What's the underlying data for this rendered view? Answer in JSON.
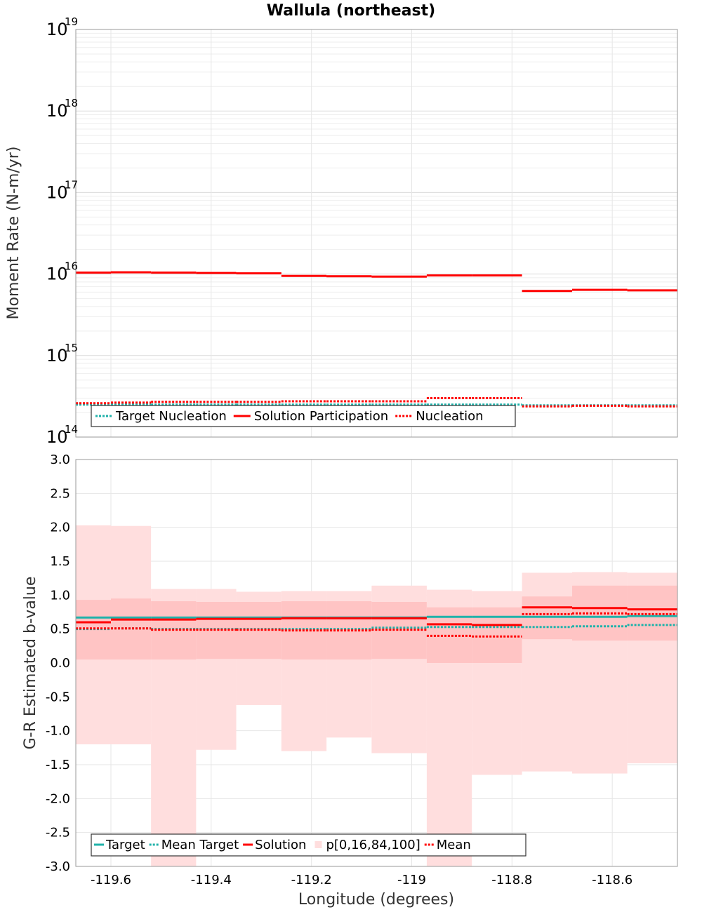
{
  "chart_data": [
    {
      "type": "line",
      "title": "Wallula (northeast)",
      "xlabel": "Longitude (degrees)",
      "ylabel": "Moment Rate (N-m/yr)",
      "yscale": "log",
      "xlim": [
        -119.67,
        -118.47
      ],
      "ylim": [
        100000000000000.0,
        1e+19
      ],
      "ytick_exponents": [
        "14",
        "15",
        "16",
        "17",
        "18",
        "19"
      ],
      "grid": true,
      "legend_position": "bottom-left",
      "bin_edges": [
        -119.67,
        -119.6,
        -119.52,
        -119.43,
        -119.35,
        -119.26,
        -119.17,
        -119.08,
        -118.97,
        -118.88,
        -118.78,
        -118.68,
        -118.57,
        -118.47
      ],
      "series": [
        {
          "name": "Target Nucleation",
          "style": "dotted",
          "color": "#20b2aa",
          "values": [
            250000000000000.0,
            250000000000000.0,
            250000000000000.0,
            250000000000000.0,
            250000000000000.0,
            250000000000000.0,
            250000000000000.0,
            250000000000000.0,
            250000000000000.0,
            250000000000000.0,
            245000000000000.0,
            245000000000000.0,
            245000000000000.0
          ]
        },
        {
          "name": "Solution Participation",
          "style": "solid",
          "color": "#ff0000",
          "values": [
            1.04e+16,
            1.05e+16,
            1.04e+16,
            1.03e+16,
            1.02e+16,
            9500000000000000.0,
            9400000000000000.0,
            9300000000000000.0,
            9600000000000000.0,
            9600000000000000.0,
            6200000000000000.0,
            6400000000000000.0,
            6300000000000000.0
          ]
        },
        {
          "name": "Nucleation",
          "style": "dotted",
          "color": "#ff0000",
          "values": [
            260000000000000.0,
            265000000000000.0,
            270000000000000.0,
            270000000000000.0,
            270000000000000.0,
            275000000000000.0,
            275000000000000.0,
            275000000000000.0,
            300000000000000.0,
            300000000000000.0,
            238000000000000.0,
            242000000000000.0,
            238000000000000.0
          ]
        }
      ]
    },
    {
      "type": "line",
      "xlabel": "Longitude (degrees)",
      "ylabel": "G-R Estimated b-value",
      "xlim": [
        -119.67,
        -118.47
      ],
      "ylim": [
        -3.0,
        3.0
      ],
      "xticks": [
        -119.6,
        -119.4,
        -119.2,
        -119.0,
        -118.8,
        -118.6
      ],
      "xtick_labels": [
        "-119.6",
        "-119.4",
        "-119.2",
        "-119",
        "-118.8",
        "-118.6"
      ],
      "yticks": [
        -3.0,
        -2.5,
        -2.0,
        -1.5,
        -1.0,
        -0.5,
        0.0,
        0.5,
        1.0,
        1.5,
        2.0,
        2.5,
        3.0
      ],
      "ytick_labels": [
        "-3.0",
        "-2.5",
        "-2.0",
        "-1.5",
        "-1.0",
        "-0.5",
        "0.0",
        "0.5",
        "1.0",
        "1.5",
        "2.0",
        "2.5",
        "3.0"
      ],
      "grid": true,
      "legend_position": "bottom-left",
      "bin_edges": [
        -119.67,
        -119.6,
        -119.52,
        -119.43,
        -119.35,
        -119.26,
        -119.17,
        -119.08,
        -118.97,
        -118.88,
        -118.78,
        -118.68,
        -118.57,
        -118.47
      ],
      "bands": {
        "name": "p[0,16,84,100]",
        "p0": [
          -1.2,
          -1.2,
          -3.0,
          -1.28,
          -0.62,
          -1.3,
          -1.1,
          -1.33,
          -3.0,
          -1.65,
          -1.6,
          -1.63,
          -1.48
        ],
        "p16": [
          0.05,
          0.05,
          0.05,
          0.06,
          0.06,
          0.05,
          0.05,
          0.06,
          0.0,
          0.0,
          0.35,
          0.33,
          0.33
        ],
        "p84": [
          0.93,
          0.95,
          0.91,
          0.9,
          0.9,
          0.91,
          0.91,
          0.9,
          0.82,
          0.82,
          0.98,
          1.14,
          1.14
        ],
        "p100": [
          2.03,
          2.02,
          1.09,
          1.09,
          1.05,
          1.06,
          1.06,
          1.14,
          1.08,
          1.06,
          1.33,
          1.34,
          1.33
        ]
      },
      "series": [
        {
          "name": "Target",
          "style": "solid",
          "color": "#20b2aa",
          "values": [
            0.67,
            0.67,
            0.67,
            0.67,
            0.67,
            0.67,
            0.67,
            0.67,
            0.68,
            0.68,
            0.68,
            0.68,
            0.69
          ]
        },
        {
          "name": "Mean Target",
          "style": "dotted",
          "color": "#20b2aa",
          "values": [
            0.5,
            0.51,
            0.5,
            0.5,
            0.5,
            0.5,
            0.5,
            0.52,
            0.53,
            0.53,
            0.53,
            0.54,
            0.56
          ]
        },
        {
          "name": "Solution",
          "style": "solid",
          "color": "#ff0000",
          "values": [
            0.6,
            0.64,
            0.64,
            0.65,
            0.65,
            0.66,
            0.66,
            0.66,
            0.57,
            0.56,
            0.82,
            0.81,
            0.79
          ]
        },
        {
          "name": "Mean",
          "style": "dotted",
          "color": "#ff0000",
          "values": [
            0.51,
            0.51,
            0.49,
            0.49,
            0.49,
            0.48,
            0.48,
            0.49,
            0.4,
            0.39,
            0.72,
            0.73,
            0.72
          ]
        }
      ]
    }
  ]
}
